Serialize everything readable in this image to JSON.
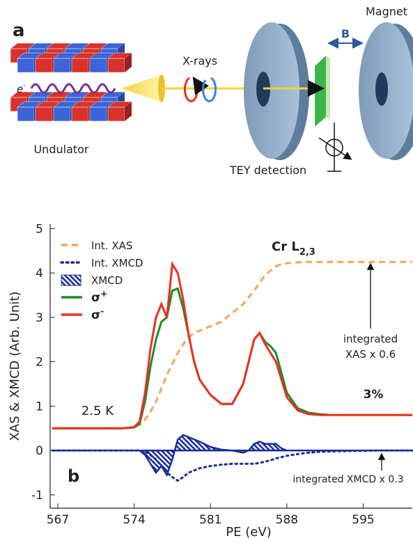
{
  "diagram": {
    "panel_label": "a",
    "electron": "e",
    "electron_sup": "-",
    "undulator": "Undulator",
    "xrays": "X-rays",
    "magnet": "Magnet",
    "field": "B",
    "detection": "TEY detection"
  },
  "chart_data": {
    "type": "line",
    "panel_label": "b",
    "title": "Cr L",
    "title_subscript": "2,3",
    "x_label": "PE (eV)",
    "y_label": "XAS & XMCD (Arb. Unit)",
    "xlim": [
      566.3,
      599.5
    ],
    "xticks": [
      567,
      574,
      581,
      588,
      595
    ],
    "ylim": [
      -1.3,
      5.1
    ],
    "yticks": [
      -1,
      0,
      1,
      2,
      3,
      4,
      5
    ],
    "annotations": [
      {
        "lines": [
          "integrated",
          "XAS x 0.6"
        ]
      },
      {
        "lines": [
          "integrated XMCD x 0.3"
        ]
      },
      {
        "lines": [
          "3%"
        ]
      },
      {
        "lines": [
          "2.5 K"
        ]
      }
    ],
    "x": [
      566.5,
      568,
      570,
      572,
      573,
      574,
      574.5,
      575,
      575.5,
      576,
      576.5,
      577,
      577.5,
      578,
      578.5,
      579,
      579.5,
      580,
      581,
      582,
      583,
      584,
      584.5,
      585,
      585.5,
      586,
      586.5,
      587,
      587.5,
      588,
      589,
      590,
      591,
      592,
      594,
      596,
      598,
      599.5
    ],
    "series": [
      {
        "name": "Int. XAS",
        "color": "#f4a65a",
        "style": "dashed",
        "values": [
          0.5,
          0.5,
          0.5,
          0.5,
          0.5,
          0.52,
          0.58,
          0.7,
          0.88,
          1.1,
          1.4,
          1.7,
          1.95,
          2.2,
          2.4,
          2.55,
          2.65,
          2.7,
          2.8,
          2.9,
          3.1,
          3.3,
          3.45,
          3.6,
          3.78,
          3.95,
          4.05,
          4.15,
          4.2,
          4.22,
          4.24,
          4.25,
          4.25,
          4.25,
          4.25,
          4.25,
          4.25,
          4.25
        ]
      },
      {
        "name": "Int. XMCD",
        "color": "#1a2d9c",
        "style": "dotted",
        "values": [
          0,
          0,
          0,
          0,
          0,
          0,
          0,
          -0.02,
          -0.1,
          -0.2,
          -0.35,
          -0.5,
          -0.6,
          -0.68,
          -0.6,
          -0.5,
          -0.45,
          -0.4,
          -0.35,
          -0.32,
          -0.3,
          -0.3,
          -0.3,
          -0.3,
          -0.28,
          -0.25,
          -0.22,
          -0.18,
          -0.15,
          -0.12,
          -0.08,
          -0.05,
          -0.03,
          -0.02,
          -0.01,
          0,
          0,
          0
        ]
      },
      {
        "name": "XMCD",
        "color": "#1a2d9c",
        "style": "hatched-area",
        "values": [
          0,
          0,
          0,
          0,
          0,
          0,
          0,
          -0.1,
          -0.3,
          -0.5,
          -0.35,
          -0.55,
          -0.2,
          0.25,
          0.35,
          0.3,
          0.25,
          0.2,
          0.08,
          0.02,
          0,
          -0.05,
          0,
          0.15,
          0.2,
          0.15,
          0.15,
          0.15,
          0.05,
          0,
          0,
          0,
          0,
          0,
          0,
          0,
          0,
          0
        ]
      },
      {
        "name": "σ+",
        "color": "#1f8a2a",
        "style": "solid",
        "values": [
          0.5,
          0.5,
          0.5,
          0.5,
          0.5,
          0.52,
          0.6,
          1.1,
          1.9,
          2.5,
          2.9,
          3.0,
          3.6,
          3.65,
          3.2,
          2.6,
          2.0,
          1.6,
          1.25,
          1.05,
          1.05,
          1.5,
          2.0,
          2.5,
          2.65,
          2.45,
          2.35,
          2.2,
          1.75,
          1.3,
          0.95,
          0.85,
          0.82,
          0.8,
          0.8,
          0.8,
          0.8,
          0.8
        ]
      },
      {
        "name": "σ-",
        "color": "#e8321e",
        "style": "solid",
        "values": [
          0.5,
          0.5,
          0.5,
          0.5,
          0.5,
          0.53,
          0.65,
          1.3,
          2.3,
          3.0,
          3.3,
          3.0,
          4.2,
          4.0,
          3.4,
          2.6,
          2.0,
          1.6,
          1.25,
          1.05,
          1.05,
          1.5,
          2.0,
          2.5,
          2.65,
          2.4,
          2.2,
          2.0,
          1.6,
          1.2,
          0.9,
          0.82,
          0.8,
          0.8,
          0.8,
          0.8,
          0.8,
          0.8
        ]
      }
    ]
  }
}
